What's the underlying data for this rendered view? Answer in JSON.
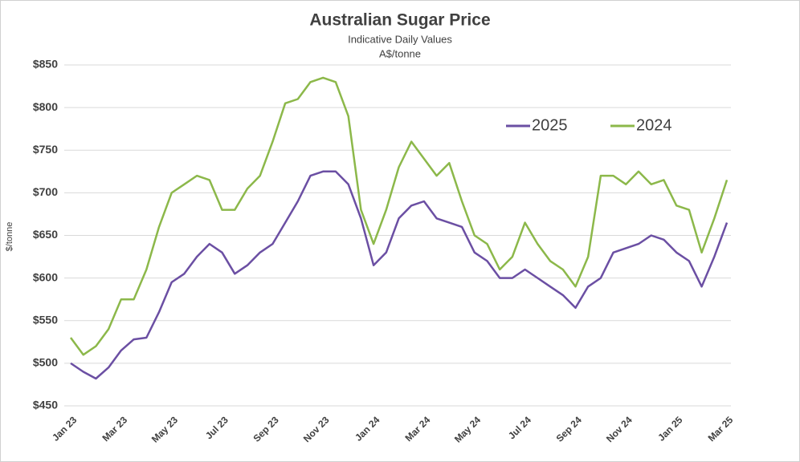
{
  "chart_data": {
    "type": "line",
    "title": "Australian Sugar Price",
    "subtitle": "Indicative Daily Values",
    "unit": "A$/tonne",
    "y_label": "$/tonne",
    "categories": [
      "Jan 23",
      null,
      null,
      null,
      "Mar 23",
      null,
      null,
      null,
      "May 23",
      null,
      null,
      null,
      "Jul 23",
      null,
      null,
      null,
      "Sep 23",
      null,
      null,
      null,
      "Nov 23",
      null,
      null,
      null,
      "Jan 24",
      null,
      null,
      null,
      "Mar 24",
      null,
      null,
      null,
      "May 24",
      null,
      null,
      null,
      "Jul 24",
      null,
      null,
      null,
      "Sep 24",
      null,
      null,
      null,
      "Nov 24",
      null,
      null,
      null,
      "Jan 25",
      null,
      null,
      null,
      "Mar 25"
    ],
    "series": [
      {
        "name": "2025",
        "color": "#6b4fa3",
        "values": [
          500,
          490,
          482,
          495,
          515,
          528,
          530,
          560,
          595,
          605,
          625,
          640,
          630,
          605,
          615,
          630,
          640,
          665,
          690,
          720,
          725,
          725,
          710,
          670,
          615,
          630,
          670,
          685,
          690,
          670,
          665,
          660,
          630,
          620,
          600,
          600,
          610,
          600,
          590,
          580,
          565,
          590,
          600,
          630,
          635,
          640,
          650,
          645,
          630,
          620,
          590,
          625,
          665
        ]
      },
      {
        "name": "2024",
        "color": "#8cb84a",
        "values": [
          530,
          510,
          520,
          540,
          575,
          575,
          610,
          660,
          700,
          710,
          720,
          715,
          680,
          680,
          705,
          720,
          760,
          805,
          810,
          830,
          835,
          830,
          790,
          680,
          640,
          680,
          730,
          760,
          740,
          720,
          735,
          690,
          650,
          640,
          610,
          625,
          665,
          640,
          620,
          610,
          590,
          625,
          720,
          720,
          710,
          725,
          710,
          715,
          685,
          680,
          630,
          670,
          715
        ]
      }
    ],
    "ylim": [
      450,
      850
    ],
    "yticks": [
      {
        "value": 450,
        "label": "$450"
      },
      {
        "value": 500,
        "label": "$500"
      },
      {
        "value": 550,
        "label": "$550"
      },
      {
        "value": 600,
        "label": "$600"
      },
      {
        "value": 650,
        "label": "$650"
      },
      {
        "value": 700,
        "label": "$700"
      },
      {
        "value": 750,
        "label": "$750"
      },
      {
        "value": 800,
        "label": "$800"
      },
      {
        "value": 850,
        "label": "$850"
      }
    ],
    "grid": true
  }
}
